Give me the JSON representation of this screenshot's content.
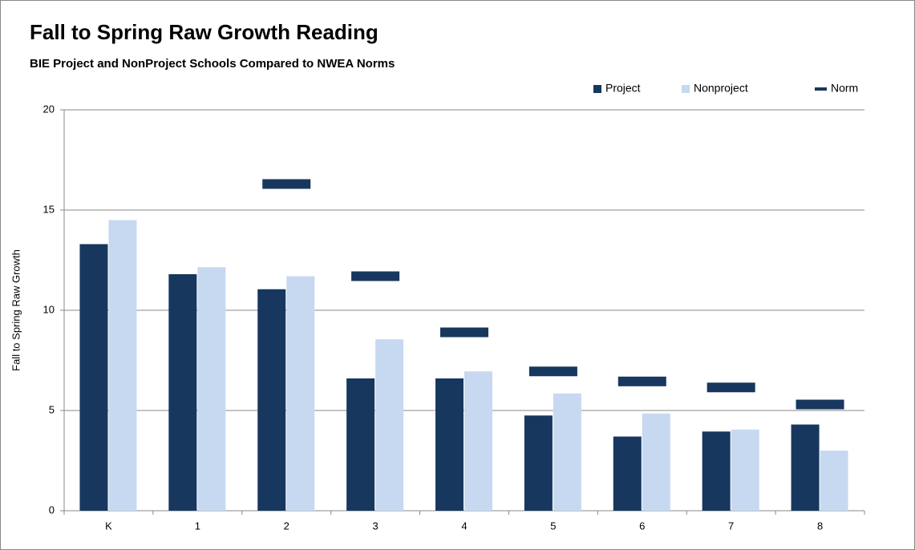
{
  "chart_data": {
    "type": "bar",
    "title": "Fall to Spring Raw Growth Reading",
    "subtitle": "BIE Project and NonProject Schools Compared to NWEA Norms",
    "y_label": "Fall to Spring Raw Growth",
    "categories": [
      "K",
      "1",
      "2",
      "3",
      "4",
      "5",
      "6",
      "7",
      "8"
    ],
    "series": [
      {
        "name": "Project",
        "color": "#17375e",
        "values": [
          13.3,
          11.8,
          11.05,
          6.6,
          6.6,
          4.75,
          3.7,
          3.95,
          4.3
        ]
      },
      {
        "name": "Nonproject",
        "color": "#c6d9f1",
        "values": [
          14.5,
          12.15,
          11.7,
          8.55,
          6.95,
          5.85,
          4.85,
          4.05,
          3.0
        ]
      },
      {
        "name": "Norm",
        "color": "#17375e",
        "type": "marker",
        "values": [
          null,
          null,
          16.3,
          11.7,
          8.9,
          6.95,
          6.45,
          6.15,
          5.3
        ]
      }
    ],
    "ylim": [
      0,
      20
    ],
    "yticks": [
      0,
      5,
      10,
      15,
      20
    ],
    "grid": true,
    "legend": "top-right"
  }
}
